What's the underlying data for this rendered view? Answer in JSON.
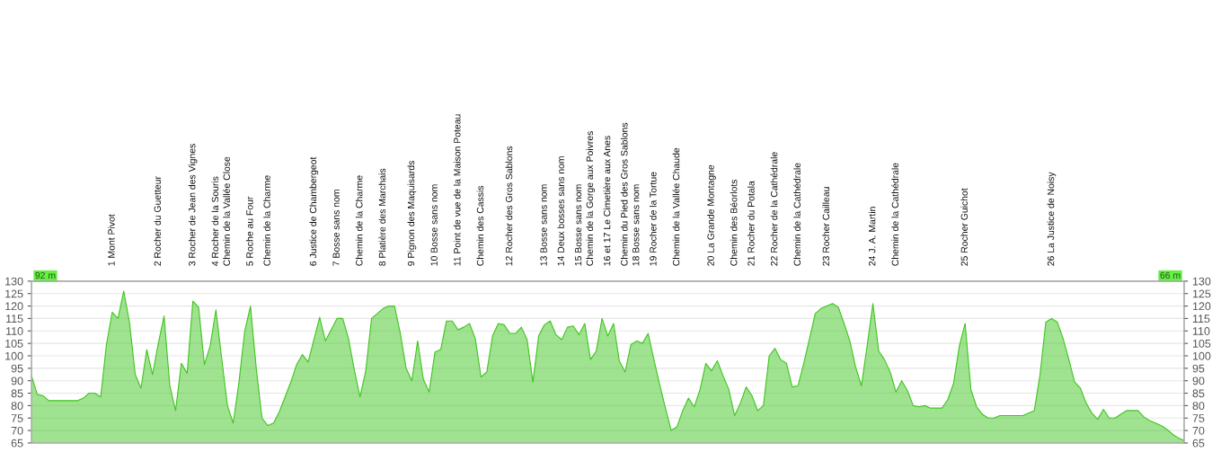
{
  "chart_data": {
    "type": "area",
    "categories": [
      null,
      null,
      null,
      null,
      null,
      null,
      null,
      null,
      null,
      null,
      null,
      null,
      null,
      null,
      "1 Mont Pivot",
      null,
      null,
      null,
      null,
      null,
      null,
      null,
      "2 Rocher du Guetteur",
      null,
      null,
      null,
      null,
      null,
      "3 Rocher de Jean des Vignes",
      null,
      null,
      null,
      "4 Rocher de la Souris",
      null,
      "Chemin de la Vallée Close",
      null,
      null,
      null,
      "5 Roche au Four",
      null,
      null,
      "Chemin de la Charme",
      null,
      null,
      null,
      null,
      null,
      null,
      null,
      "6 Justice de Chambergeot",
      null,
      null,
      null,
      "7 Bosse sans nom",
      null,
      null,
      null,
      "Chemin de la Charme",
      null,
      null,
      null,
      "8 Platière des Marchais",
      null,
      null,
      null,
      null,
      "9 Pignon des Maquisards",
      null,
      null,
      null,
      "10 Bosse sans nom",
      null,
      null,
      null,
      "11 Point de vue de la Maison Poteau",
      null,
      null,
      null,
      "Chemin des Cassis",
      null,
      null,
      null,
      null,
      "12 Rocher des Gros Sablons",
      null,
      null,
      null,
      null,
      null,
      "13 Bosse sans nom",
      null,
      null,
      "14 Deux bosses sans nom",
      null,
      null,
      "15 Bosse sans nom",
      null,
      "Chemin de la Gorge aux Poivres",
      null,
      null,
      "16 et 17 Le Cimetière aux Anes",
      null,
      null,
      "Chemin du Pied des Gros Sablons",
      null,
      "18 Bosse sans nom",
      null,
      null,
      "19 Rocher de la Tortue",
      null,
      null,
      null,
      "Chemin de la Vallée Chaude",
      null,
      null,
      null,
      null,
      null,
      "20 La Grande Montagne",
      null,
      null,
      null,
      "Chemin des Béorlots",
      null,
      null,
      "21 Rocher du Potala",
      null,
      null,
      null,
      "22 Rocher de la Cathédrale",
      null,
      null,
      null,
      "Chemin de la Cathédrale",
      null,
      null,
      null,
      null,
      "23 Rocher Cailleau",
      null,
      null,
      null,
      null,
      null,
      null,
      null,
      "24 J. A. Martin",
      null,
      null,
      null,
      "Chemin de la Cathédrale",
      null,
      null,
      null,
      null,
      null,
      null,
      null,
      null,
      null,
      null,
      null,
      "25 Rocher Guichot",
      null,
      null,
      null,
      null,
      null,
      null,
      null,
      null,
      null,
      null,
      null,
      null,
      null,
      null,
      "26 La Justice de Noisy",
      null,
      null,
      null,
      null,
      null,
      null,
      null,
      null,
      null,
      null,
      null,
      null,
      null,
      null,
      null,
      null,
      null,
      null,
      null,
      null,
      null,
      null,
      null
    ],
    "series": [
      {
        "color": "#3fc520",
        "values": [
          92,
          84.5,
          84,
          82,
          82,
          82,
          82,
          82,
          82,
          83,
          85,
          85,
          83.5,
          104.5,
          117.5,
          115,
          126,
          113.5,
          92.5,
          87,
          102.5,
          92.5,
          105,
          116,
          88,
          78,
          97,
          93,
          122,
          119.5,
          96.5,
          104,
          118.5,
          99,
          80,
          73,
          89.5,
          110,
          120,
          95,
          75,
          72,
          73,
          77.5,
          83.5,
          89.5,
          96.5,
          100.5,
          97.5,
          106.5,
          115.5,
          106,
          110.5,
          115,
          115,
          107,
          94.5,
          83.5,
          94,
          115,
          117,
          119,
          120,
          120,
          109,
          95,
          90,
          106,
          90.5,
          85.5,
          101.5,
          102.5,
          114,
          114,
          110.5,
          111.5,
          113,
          107,
          91.5,
          93.5,
          108,
          113,
          112.5,
          109,
          109,
          111.5,
          106.5,
          89.5,
          108,
          112.5,
          114,
          108.5,
          106.5,
          111.5,
          112,
          108.5,
          113,
          98.5,
          102,
          115,
          108,
          113,
          98,
          93.5,
          104.5,
          106,
          105,
          109,
          98.5,
          88.5,
          79,
          70,
          71.5,
          78,
          83,
          79.5,
          86.5,
          97,
          94,
          98,
          92,
          86.5,
          76,
          81,
          87.5,
          84,
          78,
          80,
          100,
          103,
          98.5,
          97,
          87.5,
          88,
          97,
          107,
          117,
          119,
          120,
          121,
          119.5,
          113,
          106,
          95.5,
          88,
          104,
          121,
          102,
          98.5,
          93.5,
          85.5,
          90,
          86,
          80,
          79.5,
          80,
          79,
          79,
          79,
          82.5,
          89,
          104,
          113,
          86.5,
          79.5,
          76.5,
          75,
          75,
          76,
          76,
          76,
          76,
          76,
          77,
          78,
          92.5,
          113.5,
          115,
          113.5,
          107,
          98.5,
          89.5,
          87,
          81,
          77,
          74.5,
          78.5,
          75,
          75,
          76.5,
          78,
          78,
          78,
          75.5,
          74,
          73,
          72,
          70.5,
          68.5,
          67,
          66
        ]
      }
    ],
    "ylim": [
      65,
      130
    ],
    "yticks": [
      65,
      70,
      75,
      80,
      85,
      90,
      95,
      100,
      105,
      110,
      115,
      120,
      125,
      130
    ],
    "y2lim": [
      65,
      130
    ],
    "y2ticks": [
      65,
      70,
      75,
      80,
      85,
      90,
      95,
      100,
      105,
      110,
      115,
      120,
      125,
      130
    ],
    "grid": "y",
    "annotations": [
      "92 m",
      "66 m"
    ]
  }
}
